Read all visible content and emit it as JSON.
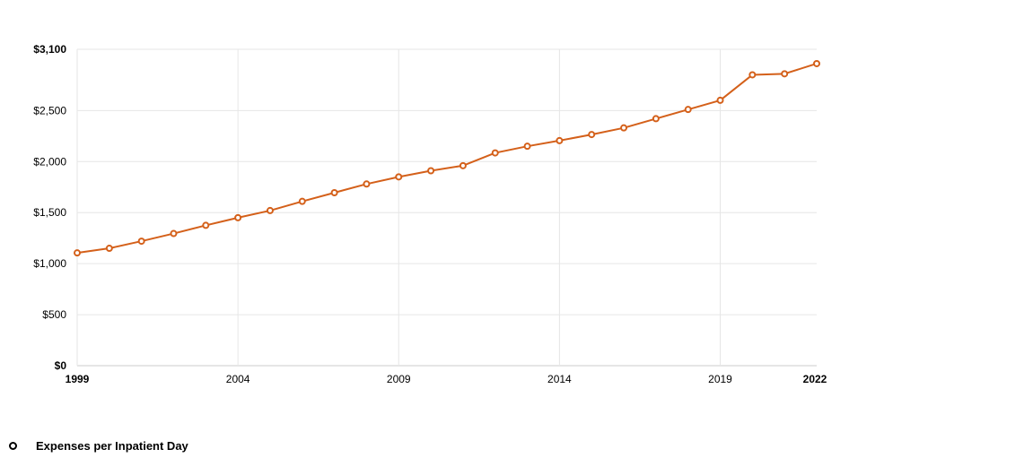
{
  "chart_data": {
    "type": "line",
    "title": "",
    "xlabel": "",
    "ylabel": "",
    "x": [
      1999,
      2000,
      2001,
      2002,
      2003,
      2004,
      2005,
      2006,
      2007,
      2008,
      2009,
      2010,
      2011,
      2012,
      2013,
      2014,
      2015,
      2016,
      2017,
      2018,
      2019,
      2020,
      2021,
      2022
    ],
    "series": [
      {
        "name": "Expenses per Inpatient Day",
        "color": "#d4601a",
        "values": [
          1105,
          1150,
          1220,
          1295,
          1375,
          1450,
          1520,
          1610,
          1695,
          1780,
          1850,
          1910,
          1960,
          2085,
          2150,
          2205,
          2265,
          2330,
          2420,
          2510,
          2600,
          2850,
          2860,
          2960
        ]
      }
    ],
    "ylim": [
      0,
      3100
    ],
    "y_ticks": [
      "$0",
      "$500",
      "$1,000",
      "$1,500",
      "$2,000",
      "$2,500",
      "$3,100"
    ],
    "y_tick_values": [
      0,
      500,
      1000,
      1500,
      2000,
      2500,
      3100
    ],
    "x_ticks": [
      "1999",
      "2004",
      "2009",
      "2014",
      "2019",
      "2022"
    ],
    "x_tick_values": [
      1999,
      2004,
      2009,
      2014,
      2019,
      2022
    ],
    "grid": true,
    "legend_position": "bottom-left"
  },
  "legend": {
    "label": "Expenses per Inpatient Day"
  }
}
